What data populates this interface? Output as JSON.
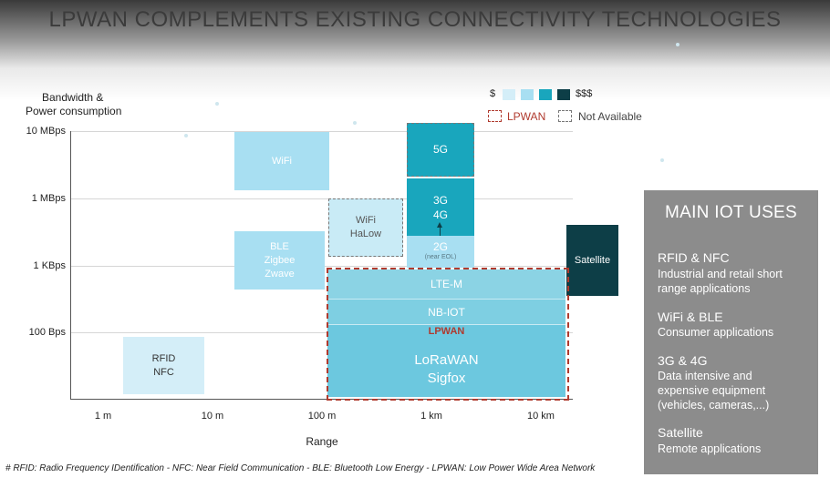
{
  "title": "LPWAN COMPLEMENTS EXISTING CONNECTIVITY TECHNOLOGIES",
  "axes": {
    "y_label_line1": "Bandwidth &",
    "y_label_line2": "Power consumption",
    "x_label": "Range",
    "y_ticks": [
      "10 MBps",
      "1 MBps",
      "1 KBps",
      "100 Bps"
    ],
    "x_ticks": [
      "1 m",
      "10 m",
      "100 m",
      "1 km",
      "10 km"
    ]
  },
  "legend": {
    "cost_low": "$",
    "cost_high": "$$$",
    "lpwan": "LPWAN",
    "not_available": "Not Available"
  },
  "technologies": {
    "wifi": "WiFi",
    "wifi_halow_1": "WiFi",
    "wifi_halow_2": "HaLow",
    "ble_1": "BLE",
    "ble_2": "Zigbee",
    "ble_3": "Zwave",
    "rfid_1": "RFID",
    "rfid_2": "NFC",
    "g5": "5G",
    "g34_1": "3G",
    "g34_2": "4G",
    "g2": "2G",
    "g2_note": "(near EOL)",
    "satellite": "Satellite",
    "ltem": "LTE-M",
    "nbiot": "NB-IOT",
    "lpwan_label": "LPWAN",
    "lora": "LoRaWAN",
    "sigfox": "Sigfox"
  },
  "panel": {
    "title": "MAIN IOT USES",
    "uses": [
      {
        "heading": "RFID & NFC",
        "line1": "Industrial and retail short",
        "line2": "range applications",
        "line3": ""
      },
      {
        "heading": "WiFi & BLE",
        "line1": "Consumer applications",
        "line2": "",
        "line3": ""
      },
      {
        "heading": "3G & 4G",
        "line1": "Data intensive and",
        "line2": "expensive equipment",
        "line3": "(vehicles, cameras,...)"
      },
      {
        "heading": "Satellite",
        "line1": "Remote applications",
        "line2": "",
        "line3": ""
      }
    ]
  },
  "footnote": "# RFID: Radio Frequency IDentification - NFC: Near Field Communication - BLE: Bluetooth Low Energy - LPWAN: Low Power Wide Area Network",
  "colors": {
    "tier1": "#d4eef8",
    "tier2": "#a8dff2",
    "tier3": "#19a6bd",
    "tier4": "#0d3e47",
    "lpwan_border": "#b03a2e"
  }
}
